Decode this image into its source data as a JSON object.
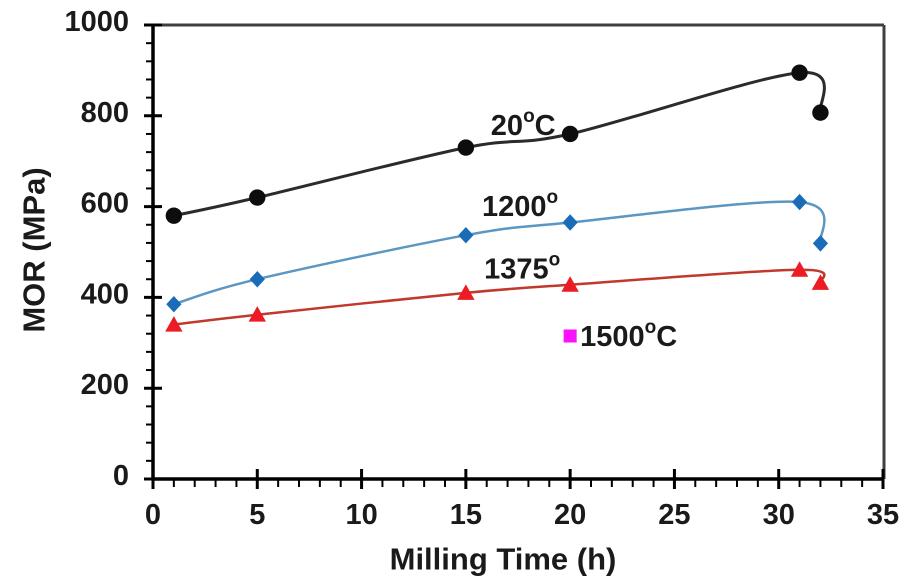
{
  "figure": {
    "background": "#ffffff",
    "text_color": "#1a1a1a",
    "axis_color": "#000000",
    "frame_color": "#3f3f3f"
  },
  "chart_data": {
    "type": "line",
    "title": "",
    "xlabel": "Milling Time (h)",
    "ylabel": "MOR (MPa)",
    "xlim": [
      0,
      35
    ],
    "ylim": [
      0,
      1000
    ],
    "x_major_ticks": [
      0,
      5,
      10,
      15,
      20,
      25,
      30,
      35
    ],
    "x_minor_step": 1,
    "y_major_ticks": [
      0,
      200,
      400,
      600,
      800,
      1000
    ],
    "y_minor_step": 40,
    "grid": false,
    "legend_position": "inline-annotations",
    "series": [
      {
        "name": "20C",
        "annotation": {
          "pre": "20",
          "sup": "o",
          "post": "C",
          "x": 17.75,
          "y": 778
        },
        "marker": "circle",
        "line_color": "#2b2b2b",
        "marker_color": "#0d0d0d",
        "line_width": 3,
        "points": [
          [
            1,
            580
          ],
          [
            5,
            620
          ],
          [
            15,
            730
          ],
          [
            20,
            760
          ],
          [
            31,
            895
          ],
          [
            32,
            807
          ]
        ]
      },
      {
        "name": "1200",
        "annotation": {
          "pre": "1200",
          "sup": "o",
          "post": "",
          "x": 17.6,
          "y": 599
        },
        "marker": "diamond",
        "line_color": "#5b97c2",
        "marker_color": "#1a6cb8",
        "line_width": 2.5,
        "points": [
          [
            1,
            385
          ],
          [
            5,
            440
          ],
          [
            15,
            537
          ],
          [
            20,
            565
          ],
          [
            31,
            610
          ],
          [
            32,
            519
          ]
        ]
      },
      {
        "name": "1375",
        "annotation": {
          "pre": "1375",
          "sup": "o",
          "post": "",
          "x": 17.7,
          "y": 461
        },
        "marker": "triangle",
        "line_color": "#c0392b",
        "marker_color": "#ec1c24",
        "line_width": 2.5,
        "points": [
          [
            1,
            340
          ],
          [
            5,
            362
          ],
          [
            15,
            410
          ],
          [
            20,
            428
          ],
          [
            31,
            461
          ],
          [
            32,
            432
          ]
        ]
      }
    ],
    "isolated_points": [
      {
        "name": "1500C",
        "annotation": {
          "pre": "1500",
          "sup": "o",
          "post": "C"
        },
        "marker": "square",
        "color": "#fa10fa",
        "x": 20,
        "y": 315
      }
    ]
  }
}
